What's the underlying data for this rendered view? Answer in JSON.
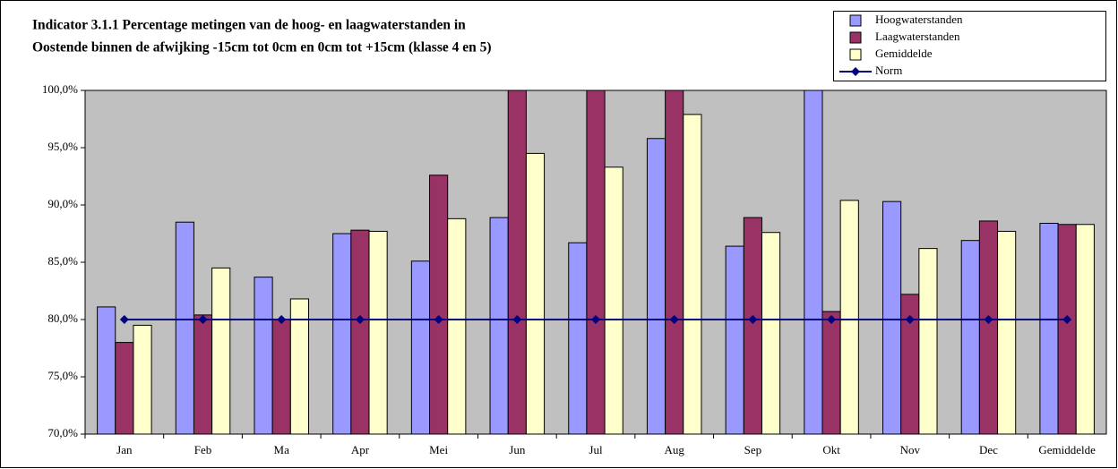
{
  "chart_data": {
    "type": "bar",
    "title": [
      "Indicator 3.1.1 Percentage metingen van de hoog- en laagwaterstanden in",
      "Oostende binnen de afwijking -15cm tot 0cm en 0cm tot +15cm (klasse 4 en 5)"
    ],
    "categories": [
      "Jan",
      "Feb",
      "Ma",
      "Apr",
      "Mei",
      "Jun",
      "Jul",
      "Aug",
      "Sep",
      "Okt",
      "Nov",
      "Dec",
      "Gemiddelde"
    ],
    "series": [
      {
        "name": "Hoogwaterstanden",
        "color": "#9999ff",
        "type": "bar",
        "values": [
          81.1,
          88.5,
          83.7,
          87.5,
          85.1,
          88.9,
          86.7,
          95.8,
          86.4,
          100,
          90.3,
          86.9,
          88.4
        ]
      },
      {
        "name": "Laagwaterstanden",
        "color": "#993366",
        "type": "bar",
        "values": [
          78.0,
          80.4,
          80.0,
          87.8,
          92.6,
          100,
          100,
          100,
          88.9,
          80.7,
          82.2,
          88.6,
          88.3
        ]
      },
      {
        "name": "Gemiddelde",
        "color": "#ffffcc",
        "type": "bar",
        "values": [
          79.5,
          84.5,
          81.8,
          87.7,
          88.8,
          94.5,
          93.3,
          97.9,
          87.6,
          90.4,
          86.2,
          87.7,
          88.3
        ]
      },
      {
        "name": "Norm",
        "color": "#000080",
        "type": "line",
        "values": [
          80,
          80,
          80,
          80,
          80,
          80,
          80,
          80,
          80,
          80,
          80,
          80,
          80
        ]
      }
    ],
    "ylim": [
      70,
      100
    ],
    "yticks": [
      {
        "value": 70,
        "label": "70,0%"
      },
      {
        "value": 75,
        "label": "75,0%"
      },
      {
        "value": 80,
        "label": "80,0%"
      },
      {
        "value": 85,
        "label": "85,0%"
      },
      {
        "value": 90,
        "label": "90,0%"
      },
      {
        "value": 95,
        "label": "95,0%"
      },
      {
        "value": 100,
        "label": "100,0%"
      }
    ],
    "grid": false,
    "legend": "top-right",
    "plot_background": "#c0c0c0"
  }
}
